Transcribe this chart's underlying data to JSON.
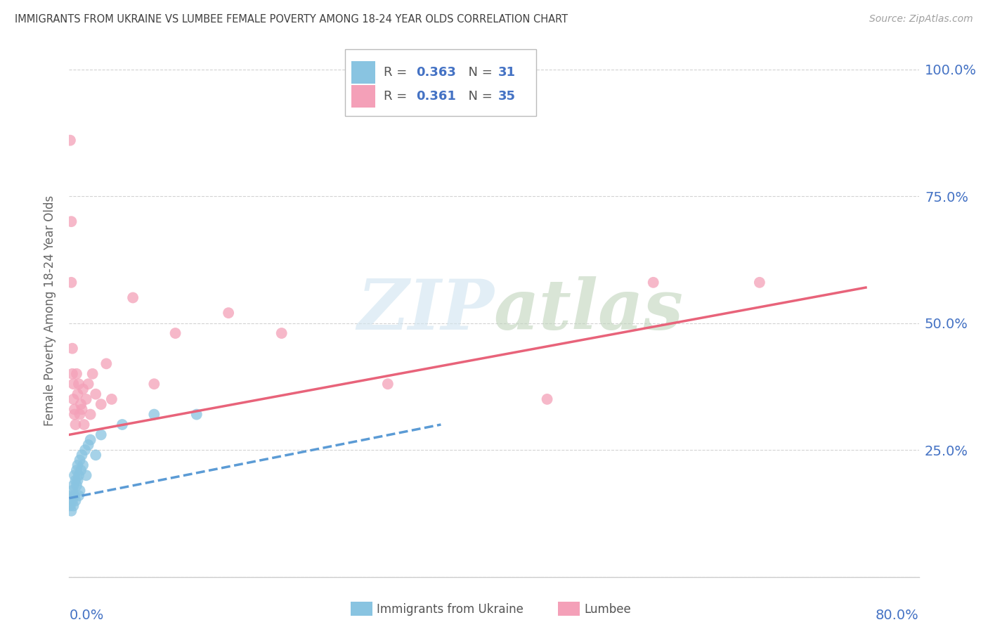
{
  "title": "IMMIGRANTS FROM UKRAINE VS LUMBEE FEMALE POVERTY AMONG 18-24 YEAR OLDS CORRELATION CHART",
  "source": "Source: ZipAtlas.com",
  "ylabel": "Female Poverty Among 18-24 Year Olds",
  "ukraine_color": "#89c4e1",
  "lumbee_color": "#f4a0b8",
  "ukraine_line_color": "#5b9bd5",
  "lumbee_line_color": "#e8637a",
  "watermark_color": "#d0e4f0",
  "watermark_color2": "#c8d8c8",
  "xlim": [
    0.0,
    0.8
  ],
  "ylim": [
    0.0,
    1.05
  ],
  "yticks": [
    0.0,
    0.25,
    0.5,
    0.75,
    1.0
  ],
  "background_color": "#ffffff",
  "grid_color": "#c8c8c8",
  "axis_label_color": "#4472c4",
  "title_color": "#404040",
  "source_color": "#a0a0a0",
  "ukraine_x": [
    0.001,
    0.002,
    0.002,
    0.003,
    0.003,
    0.004,
    0.004,
    0.005,
    0.005,
    0.006,
    0.006,
    0.007,
    0.007,
    0.008,
    0.008,
    0.009,
    0.009,
    0.01,
    0.01,
    0.011,
    0.012,
    0.013,
    0.015,
    0.016,
    0.018,
    0.02,
    0.025,
    0.03,
    0.05,
    0.08,
    0.12
  ],
  "ukraine_y": [
    0.14,
    0.16,
    0.13,
    0.15,
    0.17,
    0.18,
    0.14,
    0.2,
    0.16,
    0.19,
    0.15,
    0.21,
    0.18,
    0.22,
    0.19,
    0.2,
    0.16,
    0.23,
    0.17,
    0.21,
    0.24,
    0.22,
    0.25,
    0.2,
    0.26,
    0.27,
    0.24,
    0.28,
    0.3,
    0.32,
    0.32
  ],
  "lumbee_x": [
    0.001,
    0.002,
    0.002,
    0.003,
    0.003,
    0.004,
    0.004,
    0.005,
    0.005,
    0.006,
    0.007,
    0.008,
    0.009,
    0.01,
    0.011,
    0.012,
    0.013,
    0.014,
    0.016,
    0.018,
    0.02,
    0.022,
    0.025,
    0.03,
    0.035,
    0.04,
    0.06,
    0.08,
    0.1,
    0.15,
    0.2,
    0.3,
    0.45,
    0.55,
    0.65
  ],
  "lumbee_y": [
    0.86,
    0.7,
    0.58,
    0.45,
    0.4,
    0.38,
    0.35,
    0.33,
    0.32,
    0.3,
    0.4,
    0.36,
    0.38,
    0.32,
    0.34,
    0.33,
    0.37,
    0.3,
    0.35,
    0.38,
    0.32,
    0.4,
    0.36,
    0.34,
    0.42,
    0.35,
    0.55,
    0.38,
    0.48,
    0.52,
    0.48,
    0.38,
    0.35,
    0.58,
    0.58
  ],
  "ukraine_trend_x": [
    0.0,
    0.35
  ],
  "ukraine_trend_y": [
    0.155,
    0.3
  ],
  "lumbee_trend_x": [
    0.0,
    0.75
  ],
  "lumbee_trend_y": [
    0.28,
    0.57
  ]
}
